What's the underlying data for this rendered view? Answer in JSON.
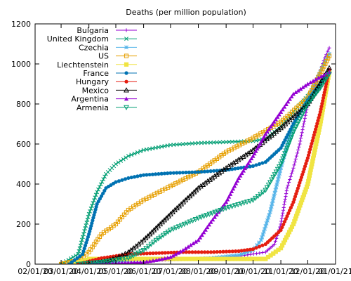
{
  "chart_data": {
    "type": "line",
    "title": "Deaths (per million population)",
    "xlabel": "",
    "ylabel": "",
    "ylim": [
      0,
      1200
    ],
    "xlim": [
      "2020-02-01",
      "2021-01-01"
    ],
    "y_ticks": [
      "0",
      "200",
      "400",
      "600",
      "800",
      "1000",
      "1200"
    ],
    "x_ticks": [
      "02/01/20",
      "03/01/20",
      "04/01/20",
      "05/01/20",
      "06/01/20",
      "07/01/20",
      "08/01/20",
      "09/01/20",
      "10/01/20",
      "11/01/20",
      "12/01/20",
      "01/01/21"
    ],
    "grid": false,
    "legend_position": "top-left",
    "series": [
      {
        "name": "Bulgaria",
        "color": "#9400d3",
        "marker": "+",
        "x": [
          "2020-03-15",
          "2020-04-15",
          "2020-05-15",
          "2020-06-15",
          "2020-07-15",
          "2020-08-15",
          "2020-09-15",
          "2020-10-15",
          "2020-10-25",
          "2020-11-01",
          "2020-11-08",
          "2020-11-15",
          "2020-11-22",
          "2020-12-01",
          "2020-12-10",
          "2020-12-20",
          "2020-12-25"
        ],
        "y": [
          0,
          5,
          15,
          20,
          25,
          30,
          40,
          60,
          100,
          200,
          380,
          480,
          600,
          800,
          900,
          1030,
          1080
        ]
      },
      {
        "name": "United Kingdom",
        "color": "#009e73",
        "marker": "x",
        "x": [
          "2020-03-01",
          "2020-03-20",
          "2020-04-01",
          "2020-04-10",
          "2020-04-20",
          "2020-05-01",
          "2020-05-15",
          "2020-06-01",
          "2020-07-01",
          "2020-08-01",
          "2020-09-01",
          "2020-10-01",
          "2020-10-15",
          "2020-11-01",
          "2020-11-15",
          "2020-12-01",
          "2020-12-15",
          "2020-12-25"
        ],
        "y": [
          0,
          50,
          250,
          360,
          450,
          500,
          540,
          570,
          595,
          605,
          610,
          615,
          625,
          690,
          760,
          840,
          900,
          960
        ]
      },
      {
        "name": "Czechia",
        "color": "#56b4e9",
        "marker": "*",
        "x": [
          "2020-03-15",
          "2020-04-15",
          "2020-05-15",
          "2020-06-15",
          "2020-07-15",
          "2020-08-15",
          "2020-09-15",
          "2020-10-01",
          "2020-10-10",
          "2020-10-20",
          "2020-11-01",
          "2020-11-15",
          "2020-12-01",
          "2020-12-15",
          "2020-12-25"
        ],
        "y": [
          0,
          10,
          20,
          25,
          25,
          30,
          45,
          70,
          120,
          260,
          480,
          700,
          830,
          960,
          1050
        ]
      },
      {
        "name": "US",
        "color": "#e69f00",
        "marker": "square",
        "x": [
          "2020-03-01",
          "2020-03-20",
          "2020-04-01",
          "2020-04-15",
          "2020-05-01",
          "2020-05-15",
          "2020-06-01",
          "2020-07-01",
          "2020-08-01",
          "2020-09-01",
          "2020-10-01",
          "2020-11-01",
          "2020-12-01",
          "2020-12-25"
        ],
        "y": [
          0,
          20,
          60,
          150,
          200,
          270,
          320,
          390,
          460,
          560,
          630,
          710,
          830,
          1040
        ]
      },
      {
        "name": "Liechtenstein",
        "color": "#f0e442",
        "marker": "filled-square",
        "x": [
          "2020-03-15",
          "2020-04-01",
          "2020-05-01",
          "2020-06-01",
          "2020-07-01",
          "2020-08-01",
          "2020-09-01",
          "2020-10-01",
          "2020-10-15",
          "2020-11-01",
          "2020-11-15",
          "2020-12-01",
          "2020-12-15",
          "2020-12-25"
        ],
        "y": [
          0,
          26,
          26,
          26,
          26,
          26,
          26,
          26,
          26,
          80,
          200,
          400,
          700,
          960
        ]
      },
      {
        "name": "France",
        "color": "#0072b2",
        "marker": "filled-circle",
        "x": [
          "2020-03-10",
          "2020-03-25",
          "2020-04-01",
          "2020-04-10",
          "2020-04-20",
          "2020-05-01",
          "2020-05-15",
          "2020-06-01",
          "2020-07-01",
          "2020-08-01",
          "2020-09-01",
          "2020-10-01",
          "2020-10-15",
          "2020-11-01",
          "2020-11-15",
          "2020-12-01",
          "2020-12-15",
          "2020-12-25"
        ],
        "y": [
          0,
          50,
          150,
          300,
          380,
          410,
          430,
          445,
          455,
          460,
          470,
          490,
          510,
          580,
          700,
          820,
          900,
          970
        ]
      },
      {
        "name": "Hungary",
        "color": "#e51e10",
        "marker": "filled-circle",
        "x": [
          "2020-03-20",
          "2020-04-15",
          "2020-05-15",
          "2020-06-15",
          "2020-07-15",
          "2020-08-15",
          "2020-09-15",
          "2020-10-01",
          "2020-10-15",
          "2020-11-01",
          "2020-11-15",
          "2020-12-01",
          "2020-12-15",
          "2020-12-25"
        ],
        "y": [
          0,
          30,
          50,
          55,
          60,
          60,
          65,
          75,
          100,
          170,
          310,
          530,
          760,
          970
        ]
      },
      {
        "name": "Mexico",
        "color": "#000000",
        "marker": "triangle",
        "x": [
          "2020-03-25",
          "2020-04-15",
          "2020-05-01",
          "2020-05-15",
          "2020-06-01",
          "2020-07-01",
          "2020-08-01",
          "2020-09-01",
          "2020-10-01",
          "2020-11-01",
          "2020-12-01",
          "2020-12-25"
        ],
        "y": [
          0,
          10,
          30,
          60,
          120,
          250,
          380,
          480,
          570,
          680,
          800,
          980
        ]
      },
      {
        "name": "Argentina",
        "color": "#9400d3",
        "marker": "filled-triangle",
        "x": [
          "2020-04-01",
          "2020-05-01",
          "2020-06-01",
          "2020-06-15",
          "2020-07-01",
          "2020-07-15",
          "2020-08-01",
          "2020-08-15",
          "2020-09-01",
          "2020-09-15",
          "2020-10-01",
          "2020-10-15",
          "2020-11-01",
          "2020-11-15",
          "2020-12-01",
          "2020-12-25"
        ],
        "y": [
          0,
          5,
          10,
          20,
          35,
          70,
          120,
          210,
          310,
          430,
          540,
          650,
          760,
          850,
          900,
          960
        ]
      },
      {
        "name": "Armenia",
        "color": "#009e73",
        "marker": "inverted-triangle",
        "x": [
          "2020-03-20",
          "2020-04-15",
          "2020-05-15",
          "2020-06-01",
          "2020-06-15",
          "2020-07-01",
          "2020-08-01",
          "2020-09-01",
          "2020-10-01",
          "2020-10-15",
          "2020-11-01",
          "2020-11-15",
          "2020-12-01",
          "2020-12-15",
          "2020-12-25"
        ],
        "y": [
          0,
          10,
          30,
          70,
          120,
          170,
          230,
          280,
          320,
          370,
          500,
          660,
          800,
          880,
          950
        ]
      }
    ]
  }
}
